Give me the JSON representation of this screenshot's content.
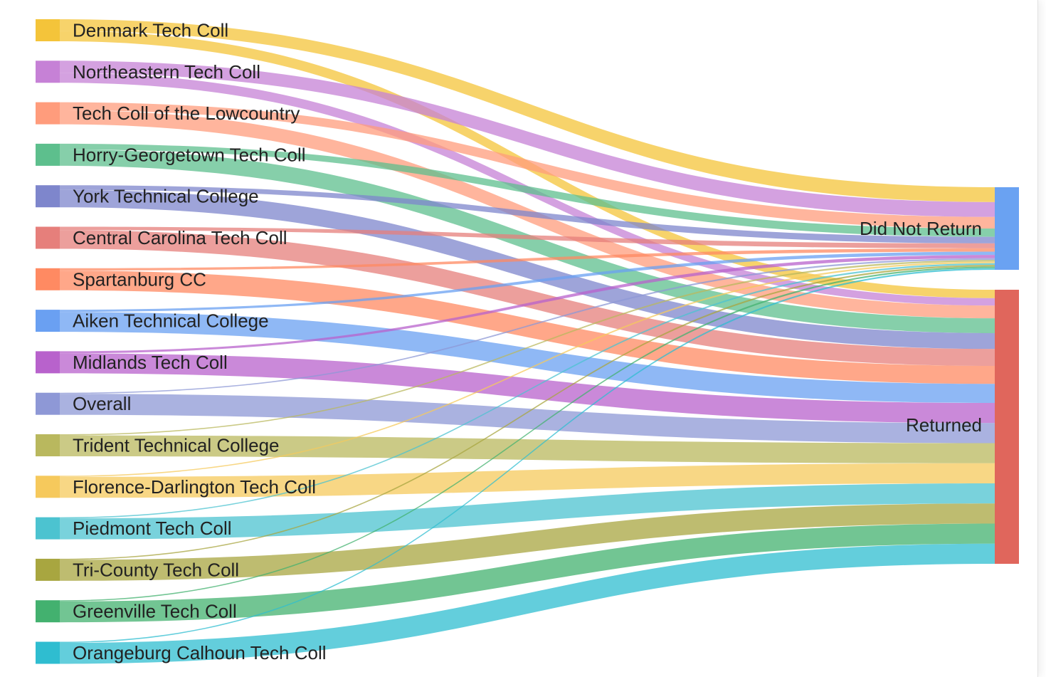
{
  "chart_data": {
    "type": "sankey",
    "sources": [
      {
        "name": "Denmark Tech Coll",
        "color": "#f4c43a",
        "returned": 8,
        "did_not_return": 9
      },
      {
        "name": "Northeastern Tech Coll",
        "color": "#c681d6",
        "returned": 7,
        "did_not_return": 9
      },
      {
        "name": "Tech Coll of the Lowcountry",
        "color": "#ff9c7c",
        "returned": 12,
        "did_not_return": 7
      },
      {
        "name": "Horry-Georgetown Tech Coll",
        "color": "#5dbf8d",
        "returned": 14,
        "did_not_return": 5
      },
      {
        "name": "York Technical College",
        "color": "#7e86cc",
        "returned": 15,
        "did_not_return": 4
      },
      {
        "name": "Central Carolina Tech Coll",
        "color": "#e67f7b",
        "returned": 16,
        "did_not_return": 3
      },
      {
        "name": "Spartanburg CC",
        "color": "#ff8a62",
        "returned": 17,
        "did_not_return": 2
      },
      {
        "name": "Aiken Technical College",
        "color": "#6aa0f2",
        "returned": 18,
        "did_not_return": 2
      },
      {
        "name": "Midlands Tech Coll",
        "color": "#b862cc",
        "returned": 19,
        "did_not_return": 2
      },
      {
        "name": "Overall",
        "color": "#8e98d6",
        "returned": 19,
        "did_not_return": 1
      },
      {
        "name": "Trident Technical College",
        "color": "#b9b85e",
        "returned": 19,
        "did_not_return": 1
      },
      {
        "name": "Florence-Darlington Tech Coll",
        "color": "#f6c95c",
        "returned": 19,
        "did_not_return": 1
      },
      {
        "name": "Piedmont Tech Coll",
        "color": "#4cc3d0",
        "returned": 19,
        "did_not_return": 1
      },
      {
        "name": "Tri-County Tech Coll",
        "color": "#a8a640",
        "returned": 19,
        "did_not_return": 1
      },
      {
        "name": "Greenville Tech Coll",
        "color": "#43b16f",
        "returned": 19,
        "did_not_return": 1
      },
      {
        "name": "Orangeburg Calhoun Tech Coll",
        "color": "#2fbdd0",
        "returned": 19,
        "did_not_return": 1
      }
    ],
    "targets": [
      {
        "name": "Did Not Return",
        "color": "#6aa2f2"
      },
      {
        "name": "Returned",
        "color": "#e0665c"
      }
    ]
  }
}
